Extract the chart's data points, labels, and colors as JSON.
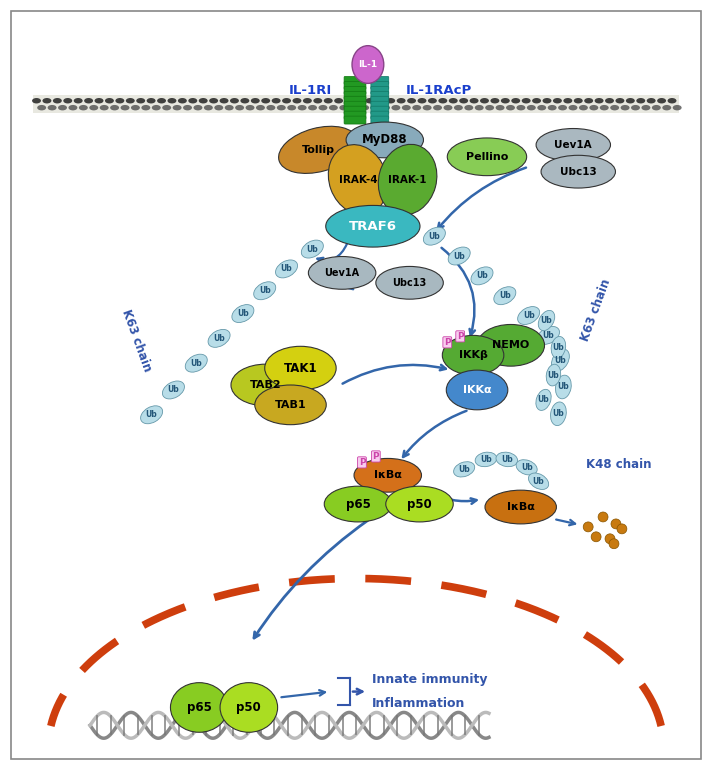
{
  "bg_color": "#ffffff",
  "border_color": "#888888",
  "receptor_left_label": "IL-1RI",
  "receptor_right_label": "IL-1RAcP",
  "receptor_label_color": "#1a3fcc",
  "arrow_color": "#3366aa",
  "k63_left_label": "K63 chain",
  "k63_right_label": "K63 chain",
  "k48_label": "K48 chain",
  "innate_label": "Innate immunity",
  "inflam_label": "Inflammation",
  "label_color": "#3355aa"
}
